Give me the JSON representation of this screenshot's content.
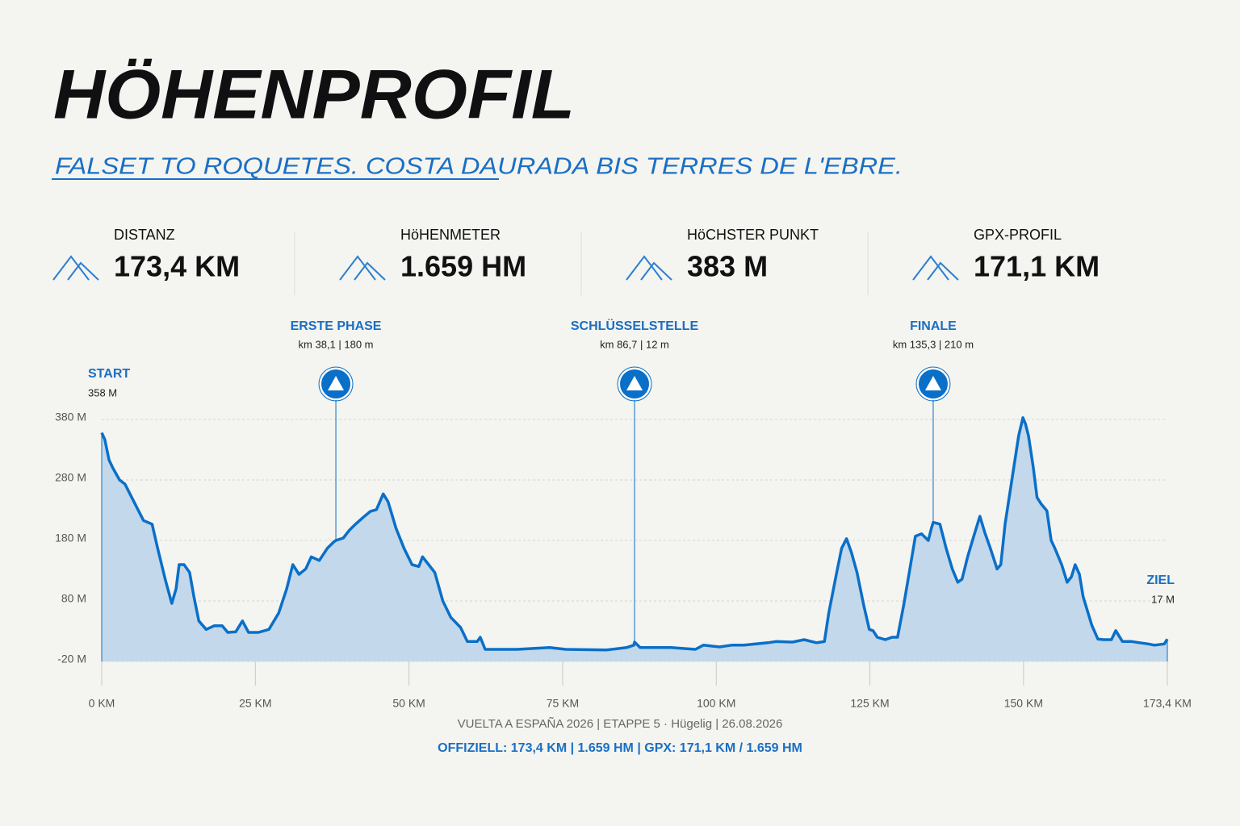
{
  "header": {
    "title": "HÖHENPROFIL",
    "subtitle": "FALSET TO ROQUETES. COSTA DAURADA BIS TERRES DE L'EBRE."
  },
  "stats": [
    {
      "label": "DISTANZ",
      "value": "173,4 KM"
    },
    {
      "label": "HöHENMETER",
      "value": "1.659 HM"
    },
    {
      "label": "HöCHSTER PUNKT",
      "value": "383 M"
    },
    {
      "label": "GPX-PROFIL",
      "value": "171,1 KM"
    }
  ],
  "chart_data": {
    "type": "area",
    "color": "#0a6fc8",
    "fill": "#c3d8eb",
    "grid": true,
    "x": [
      0,
      0.5,
      1.2,
      1.8,
      2.9,
      3.8,
      5.1,
      6.1,
      6.8,
      8.2,
      9.1,
      10.4,
      11.4,
      12.1,
      12.6,
      13.4,
      14.3,
      15.0,
      15.8,
      17.0,
      18.3,
      19.6,
      20.5,
      21.8,
      22.9,
      23.9,
      25.5,
      27.2,
      28.8,
      30.1,
      31.1,
      32.1,
      33.2,
      34.1,
      35.4,
      36.7,
      37.8,
      38.1,
      39.3,
      40.3,
      41.3,
      42.4,
      43.7,
      44.7,
      45.8,
      46.6,
      47.9,
      49.2,
      50.5,
      51.6,
      52.2,
      53.2,
      54.2,
      55.5,
      56.8,
      58.4,
      59.5,
      61.1,
      61.6,
      62.4,
      67.6,
      72.9,
      75.5,
      82.1,
      85.4,
      86.6,
      86.7,
      87.6,
      89.9,
      92.6,
      96.6,
      97.9,
      100.5,
      102.5,
      104.5,
      108.4,
      109.7,
      112.4,
      114.3,
      116.3,
      117.6,
      118.3,
      119.6,
      120.4,
      121.2,
      122.0,
      122.9,
      124.0,
      124.9,
      125.5,
      126.2,
      127.5,
      128.6,
      129.5,
      130.5,
      131.4,
      132.4,
      133.4,
      134.5,
      135.0,
      135.3,
      136.4,
      137.4,
      138.4,
      139.3,
      140.0,
      140.9,
      141.9,
      142.9,
      143.7,
      144.6,
      145.7,
      146.3,
      147.0,
      147.9,
      148.6,
      149.2,
      149.9,
      150.3,
      150.8,
      151.6,
      152.2,
      152.9,
      153.8,
      154.5,
      155.1,
      156.2,
      157.1,
      157.8,
      158.4,
      159.1,
      159.7,
      161.1,
      162.1,
      163.0,
      164.3,
      165.0,
      166.1,
      167.6,
      168.9,
      170.3,
      171.3,
      172.9,
      173.4
    ],
    "values": [
      358,
      347,
      313,
      300,
      280,
      273,
      247,
      227,
      213,
      207,
      167,
      113,
      76,
      100,
      140,
      140,
      127,
      87,
      47,
      33,
      39,
      39,
      28,
      29,
      47,
      28,
      28,
      33,
      60,
      100,
      140,
      124,
      133,
      153,
      147,
      167,
      178,
      180,
      184,
      197,
      207,
      217,
      228,
      231,
      257,
      244,
      200,
      167,
      140,
      137,
      153,
      140,
      127,
      80,
      53,
      36,
      13,
      13,
      20,
      0,
      0,
      3,
      0,
      -1,
      3,
      7,
      12,
      3,
      3,
      3,
      0,
      7,
      4,
      7,
      7,
      11,
      13,
      12,
      16,
      11,
      13,
      60,
      127,
      167,
      183,
      160,
      127,
      73,
      33,
      31,
      20,
      16,
      20,
      20,
      73,
      127,
      187,
      191,
      180,
      200,
      210,
      207,
      167,
      133,
      111,
      116,
      153,
      187,
      220,
      193,
      167,
      133,
      140,
      207,
      267,
      313,
      353,
      383,
      373,
      353,
      300,
      251,
      240,
      229,
      180,
      167,
      140,
      111,
      120,
      140,
      124,
      87,
      40,
      17,
      16,
      16,
      31,
      13,
      13,
      11,
      9,
      7,
      9,
      17
    ],
    "xlim": [
      0,
      173.4
    ],
    "ylim": [
      -20,
      380
    ],
    "xticks": [
      {
        "value": 0,
        "label": "0 KM"
      },
      {
        "value": 25,
        "label": "25 KM"
      },
      {
        "value": 50,
        "label": "50 KM"
      },
      {
        "value": 75,
        "label": "75 KM"
      },
      {
        "value": 100,
        "label": "100 KM"
      },
      {
        "value": 125,
        "label": "125 KM"
      },
      {
        "value": 150,
        "label": "150 KM"
      },
      {
        "value": 173.4,
        "label": "173,4 KM"
      }
    ],
    "yticks": [
      {
        "value": -20,
        "label": "-20 M"
      },
      {
        "value": 80,
        "label": "80 M"
      },
      {
        "value": 180,
        "label": "180 M"
      },
      {
        "value": 280,
        "label": "280 M"
      },
      {
        "value": 380,
        "label": "380 M"
      }
    ],
    "annotations": [
      {
        "label": "ERSTE PHASE",
        "detail": "km 38,1 | 180 m",
        "x": 38.1,
        "y": 180
      },
      {
        "label": "SCHLÜSSELSTELLE",
        "detail": "km 86,7 | 12 m",
        "x": 86.7,
        "y": 12
      },
      {
        "label": "FINALE",
        "detail": "km 135,3 | 210 m",
        "x": 135.3,
        "y": 210
      }
    ],
    "start": {
      "label": "START",
      "detail": "358 M"
    },
    "finish": {
      "label": "ZIEL",
      "detail": "17 M"
    }
  },
  "footer": {
    "line1": "VUELTA A ESPAÑA 2026 | ETAPPE 5 · Hügelig | 26.08.2026",
    "line2": "OFFIZIELL: 173,4 KM | 1.659 HM | GPX: 171,1 KM / 1.659 HM"
  }
}
